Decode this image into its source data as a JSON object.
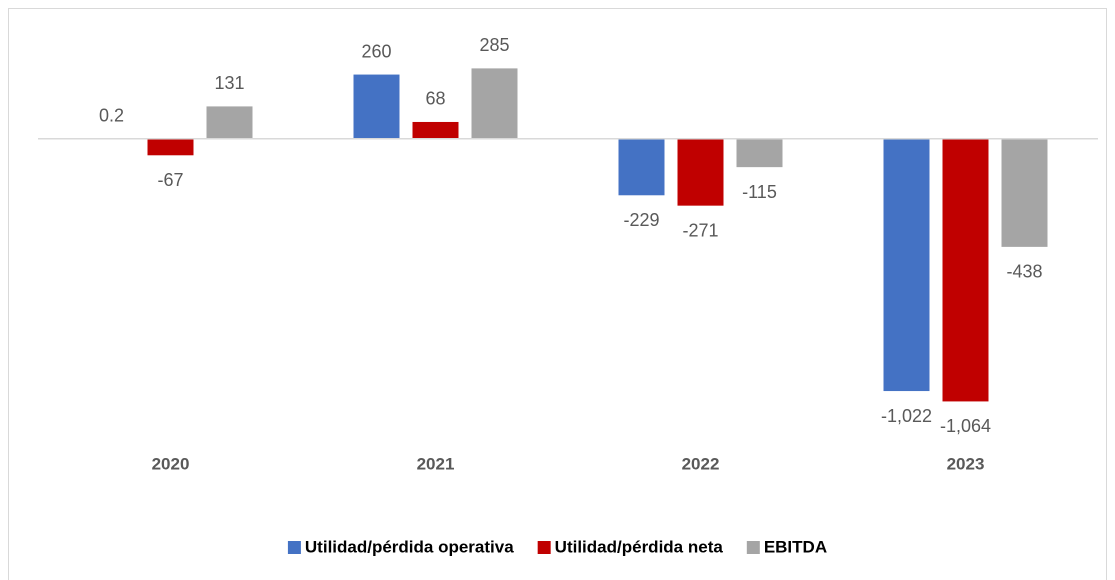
{
  "chart_data": {
    "type": "bar",
    "categories": [
      "2020",
      "2021",
      "2022",
      "2023"
    ],
    "series": [
      {
        "name": "Utilidad/pérdida operativa",
        "color": "#4472c4",
        "values": [
          0.2,
          260,
          -229,
          -1022
        ],
        "value_labels": [
          "0.2",
          "260",
          "-229",
          "-1,022"
        ]
      },
      {
        "name": "Utilidad/pérdida neta",
        "color": "#c00000",
        "values": [
          -67,
          68,
          -271,
          -1064
        ],
        "value_labels": [
          "-67",
          "68",
          "-271",
          "-1,064"
        ]
      },
      {
        "name": "EBITDA",
        "color": "#a5a5a5",
        "values": [
          131,
          285,
          -115,
          -438
        ]
      }
    ],
    "ylim": [
      -1200,
      400
    ]
  }
}
